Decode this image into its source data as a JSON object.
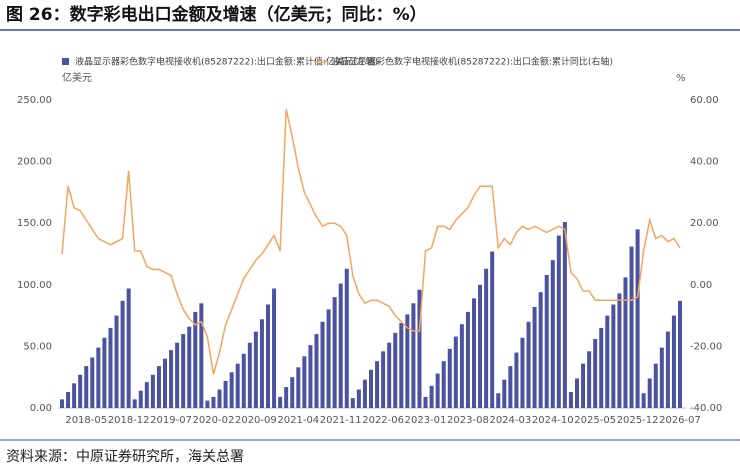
{
  "chart_data": {
    "type": "bar",
    "title": "图 26：数字彩电出口金额及增速（亿美元；同比：%）",
    "source": "资料来源：中原证券研究所，海关总署",
    "ylabel": "亿美元",
    "y2label": "%",
    "categories": [
      null,
      null,
      null,
      null,
      "2018-05",
      null,
      null,
      null,
      null,
      null,
      null,
      "2018-12",
      null,
      null,
      null,
      null,
      null,
      null,
      "2019-07",
      null,
      null,
      null,
      null,
      null,
      null,
      "2020-02",
      null,
      null,
      null,
      null,
      null,
      null,
      "2020-09",
      null,
      null,
      null,
      null,
      null,
      null,
      "2021-04",
      null,
      null,
      null,
      null,
      null,
      null,
      "2021-11",
      null,
      null,
      null,
      null,
      null,
      null,
      "2022-06",
      null,
      null,
      null,
      null,
      null,
      null,
      "2023-01",
      null,
      null,
      null,
      null,
      null,
      null,
      "2023-08",
      null,
      null,
      null,
      null,
      null,
      null,
      "2024-03",
      null,
      null,
      null,
      null,
      null,
      null,
      "2024-10",
      null,
      null,
      null,
      null,
      null,
      null,
      "2025-05",
      null,
      null,
      null,
      null,
      null,
      null,
      "2025-12",
      null,
      null,
      null,
      null,
      null,
      null,
      "2026-07"
    ],
    "series": [
      {
        "name": "液晶显示器彩色数字电视接收机(85287222):出口金额:累计值:亿美元(左轴)",
        "type": "bar",
        "color": "#4b52a0",
        "values": [
          7,
          13,
          20,
          27,
          34,
          41,
          49,
          57,
          65,
          75,
          87,
          97,
          7,
          14,
          21,
          27,
          34,
          40,
          47,
          53,
          60,
          66,
          78,
          85,
          6,
          9,
          15,
          22,
          29,
          36,
          44,
          53,
          62,
          72,
          84,
          97,
          9,
          17,
          25,
          33,
          42,
          51,
          60,
          70,
          80,
          90,
          101,
          113,
          8,
          15,
          23,
          31,
          38,
          46,
          53,
          61,
          69,
          76,
          85,
          96,
          9,
          18,
          28,
          38,
          48,
          58,
          68,
          78,
          89,
          100,
          113,
          127,
          12,
          23,
          34,
          45,
          57,
          70,
          82,
          94,
          108,
          120,
          140,
          151,
          13,
          24,
          36,
          46,
          56,
          65,
          75,
          84,
          93,
          106,
          131,
          145,
          12,
          24,
          36,
          49,
          62,
          75,
          87
        ]
      },
      {
        "name": "液晶显示器彩色数字电视接收机(85287222):出口金额:累计同比(右轴)",
        "type": "line",
        "axis": "y2",
        "color": "#f4a55e",
        "values": [
          10,
          32,
          25,
          24,
          21,
          18,
          15,
          14,
          13,
          14,
          15,
          37,
          11,
          11,
          6,
          5,
          5,
          4,
          3,
          -3,
          -8,
          -11,
          -13,
          -12,
          -17,
          -29,
          -22,
          -13,
          -8,
          -3,
          2,
          5,
          8,
          10,
          13,
          16,
          11,
          57,
          48,
          38,
          30,
          26,
          22,
          19,
          20,
          20,
          19,
          16,
          3,
          -3,
          -6,
          -5,
          -5,
          -6,
          -7,
          -10,
          -12,
          -14,
          -15,
          -15,
          11,
          12,
          19,
          19,
          18,
          21,
          23,
          25,
          29,
          32,
          32,
          32,
          12,
          15,
          13,
          17,
          19,
          18,
          19,
          18,
          17,
          18,
          19,
          18,
          4,
          2,
          -2,
          -2,
          -5,
          -5,
          -5,
          -5,
          -5,
          -5,
          -5,
          -4,
          11,
          21,
          15,
          16,
          14,
          15,
          12
        ]
      }
    ],
    "ylim": [
      0,
      250
    ],
    "yticks": [
      {
        "value": 0,
        "label": "0.00"
      },
      {
        "value": 50,
        "label": "50.00"
      },
      {
        "value": 100,
        "label": "100.00"
      },
      {
        "value": 150,
        "label": "150.00"
      },
      {
        "value": 200,
        "label": "200.00"
      },
      {
        "value": 250,
        "label": "250.00"
      }
    ],
    "y2lim": [
      -40,
      60
    ],
    "y2ticks": [
      {
        "value": -40,
        "label": "-40.00"
      },
      {
        "value": -20,
        "label": "-20.00"
      },
      {
        "value": 0,
        "label": "0.00"
      },
      {
        "value": 20,
        "label": "20.00"
      },
      {
        "value": 40,
        "label": "40.00"
      },
      {
        "value": 60,
        "label": "60.00"
      }
    ],
    "grid": false
  }
}
